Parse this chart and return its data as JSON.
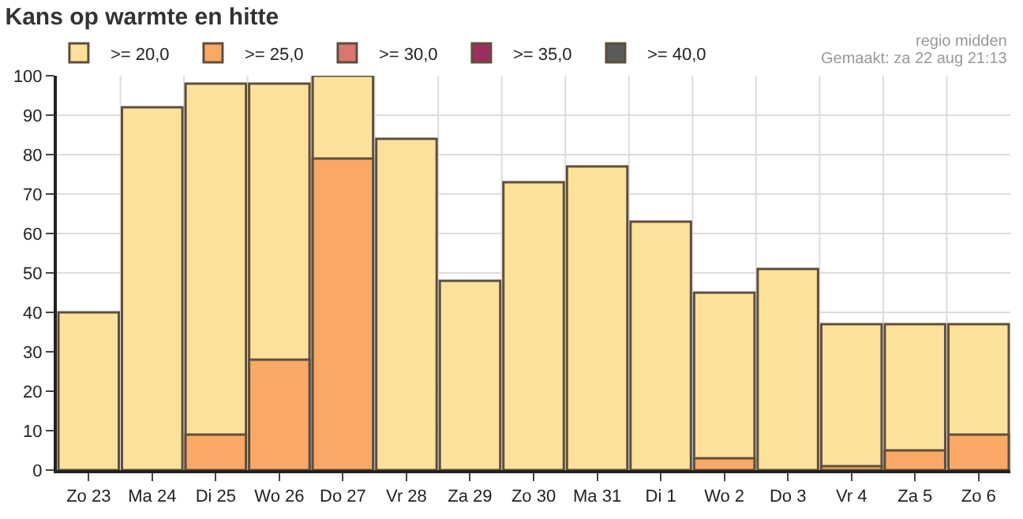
{
  "chart_data": {
    "type": "bar",
    "title": "Kans op warmte en hitte",
    "annotations": [
      "regio midden",
      "Gemaakt: za 22 aug 21:13"
    ],
    "categories": [
      "Zo 23",
      "Ma 24",
      "Di 25",
      "Wo 26",
      "Do 27",
      "Vr 28",
      "Za 29",
      "Zo 30",
      "Ma 31",
      "Di 1",
      "Wo 2",
      "Do 3",
      "Vr 4",
      "Za 5",
      "Zo 6"
    ],
    "series": [
      {
        "name": ">= 20,0",
        "color": "#fde19b",
        "values": [
          40,
          92,
          98,
          98,
          100,
          84,
          48,
          73,
          77,
          63,
          45,
          51,
          37,
          37,
          37
        ]
      },
      {
        "name": ">= 25,0",
        "color": "#f9a865",
        "values": [
          null,
          null,
          9,
          28,
          79,
          null,
          null,
          null,
          null,
          null,
          3,
          null,
          1,
          5,
          9
        ]
      },
      {
        "name": ">= 30,0",
        "color": "#d8776f",
        "values": [
          null,
          null,
          null,
          null,
          null,
          null,
          null,
          null,
          null,
          null,
          null,
          null,
          null,
          null,
          null
        ]
      },
      {
        "name": ">= 35,0",
        "color": "#9c2f5d",
        "values": [
          null,
          null,
          null,
          null,
          null,
          null,
          null,
          null,
          null,
          null,
          null,
          null,
          null,
          null,
          null
        ]
      },
      {
        "name": ">= 40,0",
        "color": "#5a5a5a",
        "values": [
          null,
          null,
          null,
          null,
          null,
          null,
          null,
          null,
          null,
          null,
          null,
          null,
          null,
          null,
          null
        ]
      }
    ],
    "ylim": [
      0,
      100
    ],
    "yticks": [
      0,
      10,
      20,
      30,
      40,
      50,
      60,
      70,
      80,
      90,
      100
    ],
    "grid": true,
    "legend": "top left"
  }
}
